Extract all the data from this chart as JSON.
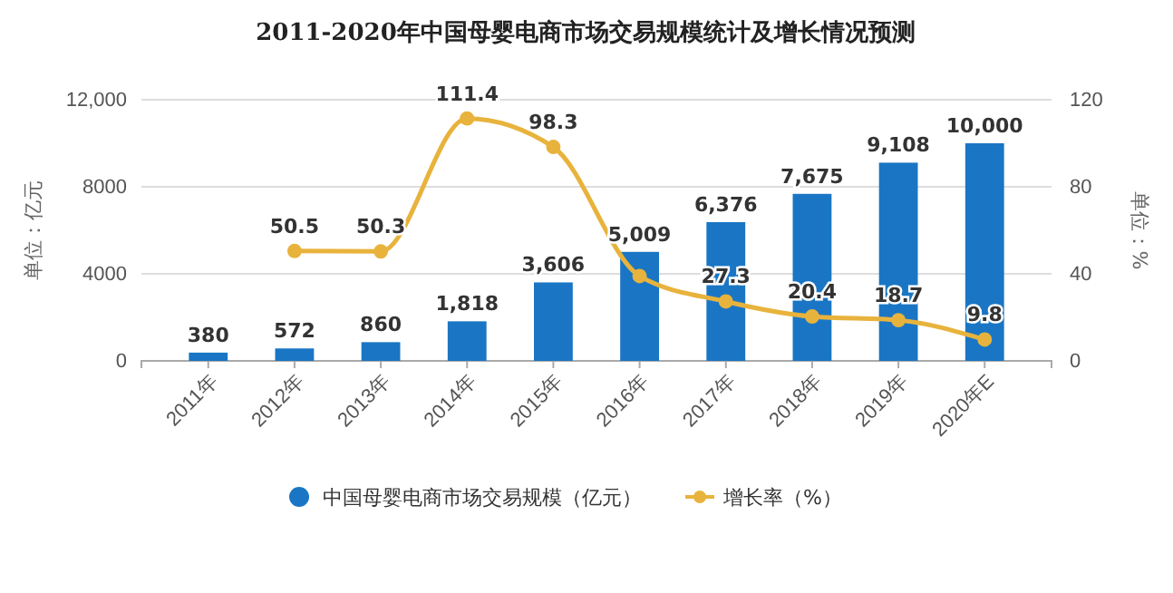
{
  "chart_data": {
    "type": "bar",
    "title": "2011-2020年中国母婴电商市场交易规模统计及增长情况预测",
    "ylabel": "单位：亿元",
    "y2label": "单位：%",
    "categories": [
      "2011年",
      "2012年",
      "2013年",
      "2014年",
      "2015年",
      "2016年",
      "2017年",
      "2018年",
      "2019年",
      "2020年E"
    ],
    "series": [
      {
        "name": "中国母婴电商市场交易规模（亿元）",
        "color": "#1a76c4",
        "values": [
          380,
          572,
          860,
          1818,
          3606,
          5009,
          6376,
          7675,
          9108,
          10000
        ],
        "value_labels": [
          "380",
          "572",
          "860",
          "1,818",
          "3,606",
          "5,009",
          "6,376",
          "7,675",
          "9,108",
          "10,000"
        ]
      },
      {
        "name": "增长率（%）",
        "type": "line",
        "axis": "y2",
        "color": "#e8b33c",
        "values": [
          null,
          50.5,
          50.3,
          111.4,
          98.3,
          39,
          27.3,
          20.4,
          18.7,
          9.8
        ],
        "value_labels": [
          null,
          "50.5",
          "50.3",
          "111.4",
          "98.3",
          null,
          "27.3",
          "20.4",
          "18.7",
          "9.8"
        ]
      }
    ],
    "ylim": [
      0,
      12000
    ],
    "yticks": [
      0,
      4000,
      8000,
      {
        "value": 12000,
        "label": "12,000"
      }
    ],
    "y2lim": [
      0,
      120
    ],
    "y2ticks": [
      0,
      40,
      80,
      120
    ],
    "grid": "y",
    "legend": "bottom",
    "marker": "circle"
  }
}
